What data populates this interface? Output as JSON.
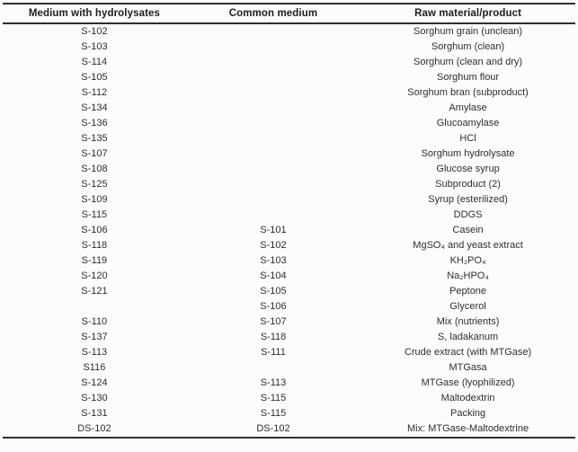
{
  "table": {
    "columns": [
      "Medium with hydrolysates",
      "Common medium",
      "Raw material/product"
    ],
    "rows": [
      [
        "S-102",
        "",
        "Sorghum grain (unclean)"
      ],
      [
        "S-103",
        "",
        "Sorghum (clean)"
      ],
      [
        "S-114",
        "",
        "Sorghum (clean and dry)"
      ],
      [
        "S-105",
        "",
        "Sorghum flour"
      ],
      [
        "S-112",
        "",
        "Sorghum bran (subproduct)"
      ],
      [
        "S-134",
        "",
        "Amylase"
      ],
      [
        "S-136",
        "",
        "Glucoamylase"
      ],
      [
        "S-135",
        "",
        "HCl"
      ],
      [
        "S-107",
        "",
        "Sorghum hydrolysate"
      ],
      [
        "S-108",
        "",
        "Glucose syrup"
      ],
      [
        "S-125",
        "",
        "Subproduct (2)"
      ],
      [
        "S-109",
        "",
        "Syrup (esterilized)"
      ],
      [
        "S-115",
        "",
        "DDGS"
      ],
      [
        "S-106",
        "S-101",
        "Casein"
      ],
      [
        "S-118",
        "S-102",
        "MgSO₄ and yeast extract"
      ],
      [
        "S-119",
        "S-103",
        "KH₂PO₄"
      ],
      [
        "S-120",
        "S-104",
        "Na₂HPO₄"
      ],
      [
        "S-121",
        "S-105",
        "Peptone"
      ],
      [
        "",
        "S-106",
        "Glycerol"
      ],
      [
        "S-110",
        "S-107",
        "Mix (nutrients)"
      ],
      [
        "S-137",
        "S-118",
        "S, ladakanum"
      ],
      [
        "S-113",
        "S-111",
        "Crude extract (with MTGase)"
      ],
      [
        "S116",
        "",
        "MTGasa"
      ],
      [
        "S-124",
        "S-113",
        "MTGase (lyophilized)"
      ],
      [
        "S-130",
        "S-115",
        "Maltodextrin"
      ],
      [
        "S-131",
        "S-115",
        "Packing"
      ],
      [
        "DS-102",
        "DS-102",
        "Mix: MTGase-Maltodextrine"
      ]
    ],
    "colors": {
      "text": "#2e2e2e",
      "header_text": "#1d1d1d",
      "rule": "#2f2f2f",
      "background": "#fcfcfc"
    }
  }
}
